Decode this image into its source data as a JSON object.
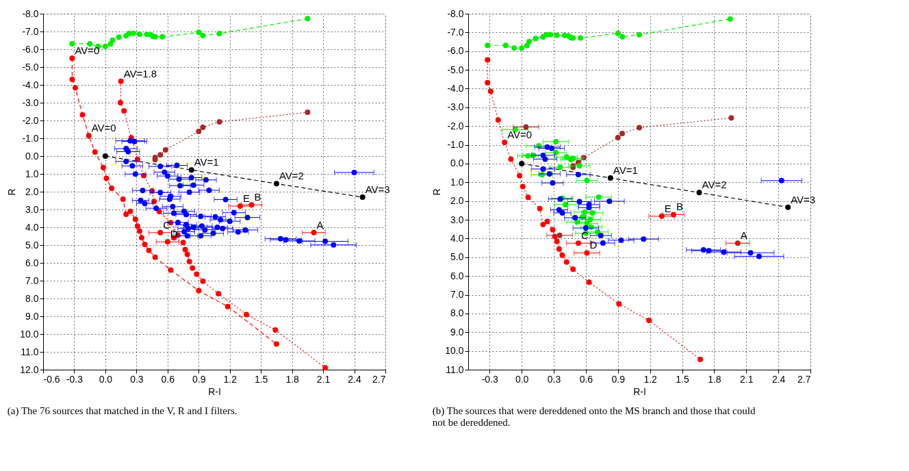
{
  "chart_data": [
    {
      "type": "scatter",
      "xlabel": "R-I",
      "ylabel": "R",
      "xlim": [
        -0.6,
        2.7
      ],
      "ylim": [
        12,
        -8
      ],
      "xticks": [
        -0.6,
        -0.3,
        {
          "value": 0,
          "label": "0.0"
        },
        0.3,
        0.6,
        0.9,
        1.2,
        1.5,
        1.8,
        2.1,
        2.4,
        2.7
      ],
      "yticks": [
        {
          "value": -8,
          "label": "-8.0"
        },
        {
          "value": -7,
          "label": "-7.0"
        },
        {
          "value": -6,
          "label": "-6.0"
        },
        {
          "value": -5,
          "label": "-5.0"
        },
        {
          "value": -4,
          "label": "-4.0"
        },
        {
          "value": -3,
          "label": "-3.0"
        },
        {
          "value": -2,
          "label": "-2.0"
        },
        {
          "value": -1,
          "label": "-1.0"
        },
        {
          "value": 0,
          "label": "0.0"
        },
        {
          "value": 1,
          "label": "1.0"
        },
        {
          "value": 2,
          "label": "2.0"
        },
        {
          "value": 3,
          "label": "3.0"
        },
        {
          "value": 4,
          "label": "4.0"
        },
        {
          "value": 5,
          "label": "5.0"
        },
        {
          "value": 6,
          "label": "6.0"
        },
        {
          "value": 7,
          "label": "7.0"
        },
        {
          "value": 8,
          "label": "8.0"
        },
        {
          "value": 9,
          "label": "9.0"
        },
        {
          "value": 10,
          "label": "10.0"
        },
        {
          "value": 11,
          "label": "11.0"
        },
        {
          "value": 12,
          "label": "12.0"
        }
      ],
      "grid": true,
      "marker": "circle",
      "series": [
        {
          "type": "line",
          "line_style": "dashed",
          "color": "#00ee00",
          "x": [
            -0.32,
            -0.15,
            -0.07,
            0.0,
            0.05,
            0.07,
            0.13,
            0.2,
            0.23,
            0.27,
            0.33,
            0.4,
            0.44,
            0.46,
            0.48,
            0.55,
            0.9,
            0.94,
            1.1,
            1.95
          ],
          "values": [
            -6.31,
            -6.31,
            -6.16,
            -6.16,
            -6.3,
            -6.51,
            -6.68,
            -6.76,
            -6.88,
            -6.89,
            -6.85,
            -6.84,
            -6.81,
            -6.72,
            -6.7,
            -6.7,
            -6.95,
            -6.77,
            -6.88,
            -7.72
          ]
        },
        {
          "type": "line",
          "line_style": "dashed",
          "color": "#ff0000",
          "x": [
            -0.32,
            -0.32,
            -0.29,
            -0.22,
            -0.16,
            -0.1,
            -0.02,
            0.01,
            0.06,
            0.17,
            0.2,
            0.24,
            0.29,
            0.31,
            0.33,
            0.35,
            0.38,
            0.42,
            0.48,
            0.63,
            0.9,
            1.18,
            1.65
          ],
          "values": [
            -5.5,
            -4.31,
            -3.84,
            -2.32,
            -1.14,
            -0.23,
            0.64,
            1.25,
            1.81,
            2.42,
            3.27,
            3.11,
            3.55,
            3.93,
            4.21,
            4.59,
            4.96,
            5.3,
            5.68,
            6.4,
            7.56,
            8.45,
            10.56
          ]
        },
        {
          "type": "line",
          "line_style": "dotted",
          "color": "#ff0000",
          "x": [
            0.15,
            0.145,
            0.18,
            0.25,
            0.31,
            0.37,
            0.45,
            0.47,
            0.52,
            0.63,
            0.7,
            0.66,
            0.75,
            0.77,
            0.79,
            0.81,
            0.84,
            0.88,
            0.94,
            1.09,
            1.36,
            1.64,
            2.12
          ],
          "values": [
            -4.2,
            -3.0,
            -2.54,
            -1.03,
            0.18,
            1.1,
            1.96,
            2.55,
            3.12,
            3.74,
            4.44,
            4.59,
            4.86,
            5.25,
            5.52,
            5.92,
            6.29,
            6.63,
            7.03,
            7.73,
            8.9,
            9.77,
            11.89
          ]
        },
        {
          "type": "line",
          "line_style": "dotted",
          "color": "#a52a2a",
          "x": [
            0.48,
            0.48,
            0.53,
            0.58,
            0.9,
            0.94,
            1.1,
            1.95
          ],
          "values": [
            0.2,
            0.08,
            -0.07,
            -0.35,
            -1.38,
            -1.62,
            -1.92,
            -2.46
          ]
        },
        {
          "type": "line",
          "line_style": "dashed",
          "color": "#000000",
          "x": [
            0.0,
            0.83,
            1.65,
            2.48
          ],
          "values": [
            0.0,
            0.78,
            1.55,
            2.31
          ]
        },
        {
          "color": "#0000ff",
          "x": [
            0.24,
            0.28,
            0.2,
            0.22,
            0.2,
            0.26,
            0.29,
            0.53,
            0.69,
            0.57,
            0.6,
            0.71,
            0.83,
            0.97,
            0.72,
            0.85,
            0.36,
            0.53,
            0.81,
            1.0,
            0.63,
            0.62,
            0.34,
            0.38,
            1.16,
            0.65,
            0.49,
            0.66,
            0.76,
            0.78,
            0.92,
            1.06,
            1.11,
            1.2,
            1.24,
            1.37,
            0.7,
            0.78,
            0.85,
            0.93,
            0.8,
            0.96,
            1.08,
            1.13,
            0.76,
            1.04,
            0.92,
            0.79,
            1.28,
            1.35,
            1.69,
            1.74,
            1.87,
            2.12,
            2.2,
            2.4
          ],
          "values": [
            -0.86,
            -0.82,
            -0.42,
            -0.25,
            0.3,
            0.55,
            1.01,
            0.58,
            0.52,
            0.9,
            1.12,
            1.3,
            1.21,
            1.34,
            1.66,
            1.63,
            1.93,
            2.05,
            2.03,
            1.92,
            2.26,
            2.42,
            2.49,
            2.66,
            2.44,
            2.84,
            2.93,
            3.21,
            3.11,
            3.29,
            3.38,
            3.41,
            3.58,
            3.66,
            3.18,
            3.45,
            3.73,
            3.86,
            4.0,
            3.93,
            4.07,
            4.14,
            4.0,
            4.07,
            4.25,
            4.34,
            4.48,
            4.48,
            4.26,
            4.15,
            4.64,
            4.7,
            4.77,
            4.79,
            4.99,
            0.92
          ],
          "xerrors": [
            0.14,
            0.12,
            0.11,
            0.11,
            0.1,
            0.1,
            0.1,
            0.11,
            0.1,
            0.1,
            0.1,
            0.1,
            0.1,
            0.1,
            0.1,
            0.1,
            0.1,
            0.1,
            0.1,
            0.1,
            0.1,
            0.1,
            0.08,
            0.08,
            0.11,
            0.1,
            0.1,
            0.1,
            0.1,
            0.1,
            0.1,
            0.1,
            0.1,
            0.1,
            0.11,
            0.12,
            0.1,
            0.1,
            0.1,
            0.1,
            0.1,
            0.1,
            0.1,
            0.1,
            0.1,
            0.1,
            0.1,
            0.1,
            0.1,
            0.12,
            0.15,
            0.15,
            0.15,
            0.22,
            0.22,
            0.19
          ]
        },
        {
          "color": "#ff0000",
          "x": [
            2.01,
            1.41,
            1.3,
            0.53,
            0.6
          ],
          "values": [
            4.3,
            2.74,
            2.81,
            4.3,
            4.82
          ],
          "xerrors": [
            0.11,
            0.1,
            0.11,
            0.11,
            0.11
          ]
        }
      ],
      "annotations": [
        {
          "text": "AV=0",
          "x": -0.32,
          "y": -5.5
        },
        {
          "text": "AV=1.8",
          "x": 0.15,
          "y": -4.2
        },
        {
          "text": "AV=0",
          "x": -0.16,
          "y": -1.14
        },
        {
          "text": "AV=1",
          "x": 0.83,
          "y": 0.78
        },
        {
          "text": "AV=2",
          "x": 1.65,
          "y": 1.55
        },
        {
          "text": "AV=3",
          "x": 2.48,
          "y": 2.31
        },
        {
          "text": "A",
          "x": 2.01,
          "y": 4.3
        },
        {
          "text": "B",
          "x": 1.41,
          "y": 2.74
        },
        {
          "text": "E",
          "x": 1.3,
          "y": 2.81
        },
        {
          "text": "C",
          "x": 0.53,
          "y": 4.3
        },
        {
          "text": "D",
          "x": 0.6,
          "y": 4.82
        },
        "(a) The 76 sources that matched in the V, R and I filters."
      ]
    },
    {
      "type": "scatter",
      "xlabel": "R-I",
      "ylabel": "R",
      "xlim": [
        -0.5,
        2.7
      ],
      "ylim": [
        11,
        -8
      ],
      "xticks": [
        -0.3,
        {
          "value": 0,
          "label": "0.0"
        },
        0.3,
        0.6,
        0.9,
        1.2,
        1.5,
        1.8,
        2.1,
        2.4,
        2.7
      ],
      "yticks": [
        {
          "value": -8,
          "label": "-8.0"
        },
        {
          "value": -7,
          "label": "-7.0"
        },
        {
          "value": -6,
          "label": "-6.0"
        },
        {
          "value": -5,
          "label": "-5.0"
        },
        {
          "value": -4,
          "label": "-4.0"
        },
        {
          "value": -3,
          "label": "-3.0"
        },
        {
          "value": -2,
          "label": "-2.0"
        },
        {
          "value": -1,
          "label": "-1.0"
        },
        {
          "value": 0,
          "label": "0.0"
        },
        {
          "value": 1,
          "label": "1.0"
        },
        {
          "value": 2,
          "label": "2.0"
        },
        {
          "value": 3,
          "label": "3.0"
        },
        {
          "value": 4,
          "label": "4.0"
        },
        {
          "value": 5,
          "label": "5.0"
        },
        {
          "value": 6,
          "label": "6.0"
        },
        {
          "value": 7,
          "label": "7.0"
        },
        {
          "value": 8,
          "label": "8.0"
        },
        {
          "value": 9,
          "label": "9.0"
        },
        {
          "value": 10,
          "label": "10.0"
        },
        {
          "value": 11,
          "label": "11.0"
        }
      ],
      "grid": true,
      "marker": "circle",
      "series": [
        {
          "type": "line",
          "line_style": "dashed",
          "color": "#00ee00",
          "x": [
            -0.32,
            -0.15,
            -0.07,
            0.0,
            0.05,
            0.07,
            0.13,
            0.2,
            0.23,
            0.27,
            0.33,
            0.4,
            0.44,
            0.46,
            0.48,
            0.55,
            0.9,
            0.94,
            1.1,
            1.95
          ],
          "values": [
            -6.31,
            -6.31,
            -6.16,
            -6.16,
            -6.3,
            -6.51,
            -6.68,
            -6.76,
            -6.88,
            -6.89,
            -6.85,
            -6.84,
            -6.81,
            -6.72,
            -6.7,
            -6.7,
            -6.95,
            -6.77,
            -6.88,
            -7.72
          ]
        },
        {
          "type": "line",
          "line_style": "dotted",
          "color": "#ff0000",
          "x": [
            -0.32,
            -0.32,
            -0.29,
            -0.22,
            -0.16,
            -0.1,
            -0.02,
            0.01,
            0.06,
            0.17,
            0.2,
            0.24,
            0.29,
            0.31,
            0.33,
            0.35,
            0.38,
            0.42,
            0.48,
            0.63,
            0.91,
            1.19,
            1.67
          ],
          "values": [
            -5.53,
            -4.32,
            -3.85,
            -2.33,
            -1.13,
            -0.24,
            0.64,
            1.23,
            1.8,
            2.4,
            3.25,
            3.09,
            3.53,
            3.89,
            4.16,
            4.56,
            4.89,
            5.25,
            5.64,
            6.33,
            7.49,
            8.37,
            10.45
          ]
        },
        {
          "type": "line",
          "line_style": "dotted",
          "color": "#a52a2a",
          "x": [
            0.48,
            0.48,
            0.53,
            0.58,
            0.9,
            0.94,
            1.1,
            1.96
          ],
          "values": [
            0.2,
            0.12,
            -0.05,
            -0.32,
            -1.39,
            -1.61,
            -1.92,
            -2.44
          ]
        },
        {
          "type": "line",
          "line_style": "dashed",
          "color": "#000000",
          "x": [
            0.0,
            0.83,
            1.66,
            2.49
          ],
          "values": [
            0.0,
            0.77,
            1.55,
            2.33
          ]
        },
        {
          "color": "#00ee00",
          "x": [
            -0.06,
            0.32,
            0.16,
            0.11,
            0.06,
            0.32,
            0.42,
            0.48,
            0.46,
            0.36,
            0.54,
            0.19,
            0.61,
            0.72,
            0.38,
            0.41,
            0.59,
            0.66,
            0.57,
            0.64,
            0.52,
            0.61,
            0.65,
            0.71,
            0.6
          ],
          "values": [
            -1.81,
            -1.17,
            -0.95,
            -0.45,
            -0.41,
            -0.59,
            -0.35,
            -0.28,
            -0.21,
            0.19,
            0.12,
            0.6,
            0.91,
            1.79,
            1.85,
            2.19,
            2.59,
            2.63,
            2.85,
            2.99,
            3.12,
            3.19,
            3.39,
            3.65,
            3.72
          ],
          "xerrors": [
            0.12,
            0.12,
            0.12,
            0.1,
            0.1,
            0.1,
            0.1,
            0.1,
            0.1,
            0.1,
            0.1,
            0.1,
            0.1,
            0.12,
            0.1,
            0.1,
            0.1,
            0.1,
            0.1,
            0.1,
            0.1,
            0.1,
            0.1,
            0.1,
            0.1
          ]
        },
        {
          "color": "#0000ff",
          "x": [
            0.24,
            0.28,
            0.2,
            0.22,
            0.2,
            0.26,
            0.29,
            0.53,
            0.36,
            0.54,
            0.63,
            0.63,
            0.82,
            0.35,
            0.38,
            0.5,
            0.6,
            0.74,
            0.76,
            0.93,
            1.14,
            1.7,
            1.75,
            1.89,
            2.14,
            2.22,
            2.43
          ],
          "values": [
            -0.88,
            -0.81,
            -0.44,
            -0.24,
            0.29,
            0.55,
            1.03,
            0.59,
            1.89,
            2.03,
            2.19,
            2.35,
            2.01,
            2.47,
            2.63,
            2.89,
            3.44,
            3.84,
            4.24,
            4.09,
            4.03,
            4.61,
            4.65,
            4.72,
            4.76,
            4.95,
            0.91
          ],
          "xerrors": [
            0.12,
            0.12,
            0.11,
            0.11,
            0.11,
            0.1,
            0.1,
            0.11,
            0.11,
            0.11,
            0.1,
            0.1,
            0.14,
            0.08,
            0.08,
            0.1,
            0.12,
            0.1,
            0.11,
            0.12,
            0.14,
            0.16,
            0.16,
            0.16,
            0.22,
            0.23,
            0.19
          ]
        },
        {
          "color": "#a52a2a",
          "x": [
            0.04,
            0.355
          ],
          "values": [
            -1.95,
            3.83
          ],
          "xerrors": [
            0.12,
            0.12
          ]
        },
        {
          "color": "#ff0000",
          "x": [
            2.02,
            1.42,
            1.31,
            0.53,
            0.61
          ],
          "values": [
            4.25,
            2.72,
            2.81,
            4.25,
            4.77
          ],
          "xerrors": [
            0.11,
            0.1,
            0.12,
            0.11,
            0.12
          ]
        }
      ],
      "annotations": [
        {
          "text": "AV=0",
          "x": -0.16,
          "y": -1.13
        },
        {
          "text": "AV=1",
          "x": 0.83,
          "y": 0.77
        },
        {
          "text": "AV=2",
          "x": 1.66,
          "y": 1.55
        },
        {
          "text": "AV=3",
          "x": 2.49,
          "y": 2.33
        },
        {
          "text": "A",
          "x": 2.02,
          "y": 4.25
        },
        {
          "text": "B",
          "x": 1.42,
          "y": 2.72
        },
        {
          "text": "E",
          "x": 1.31,
          "y": 2.81
        },
        {
          "text": "C",
          "x": 0.53,
          "y": 4.25
        },
        {
          "text": "D",
          "x": 0.61,
          "y": 4.77
        },
        "(b) The sources that were dereddened onto the MS branch and those that could not be dereddened."
      ]
    }
  ]
}
